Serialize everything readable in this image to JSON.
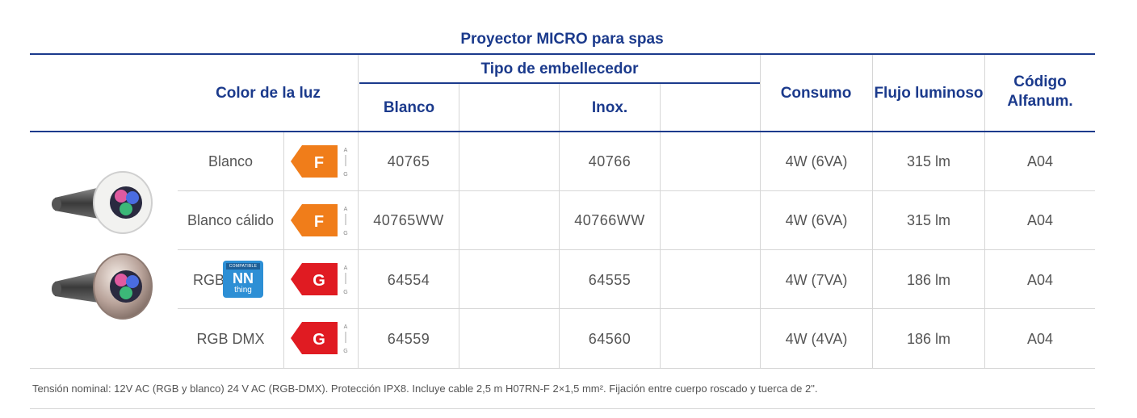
{
  "title": "Proyector MICRO para spas",
  "headers": {
    "color": "Color de la luz",
    "tipo": "Tipo de embellecedor",
    "blanco": "Blanco",
    "inox": "Inox.",
    "consumo": "Consumo",
    "flujo": "Flujo luminoso",
    "codigo_1": "Código",
    "codigo_2": "Alfanum."
  },
  "rows": [
    {
      "color": "Blanco",
      "energy_class": "F",
      "blanco": "40765",
      "inox": "40766",
      "consumo": "4W (6VA)",
      "flujo": "315 lm",
      "codigo": "A04"
    },
    {
      "color": "Blanco cálido",
      "energy_class": "F",
      "blanco": "40765WW",
      "inox": "40766WW",
      "consumo": "4W (6VA)",
      "flujo": "315 lm",
      "codigo": "A04"
    },
    {
      "color": "RGB",
      "energy_class": "G",
      "blanco": "64554",
      "inox": "64555",
      "consumo": "4W (7VA)",
      "flujo": "186 lm",
      "codigo": "A04"
    },
    {
      "color": "RGB DMX",
      "energy_class": "G",
      "blanco": "64559",
      "inox": "64560",
      "consumo": "4W (4VA)",
      "flujo": "186 lm",
      "codigo": "A04"
    }
  ],
  "energy_scale": {
    "top": "A",
    "bottom": "G"
  },
  "nn_badge": {
    "top": "COMPATIBLE",
    "brand": "NN",
    "sub": "thing"
  },
  "colors": {
    "accent": "#1b3a8c",
    "class_f": "#f07d1a",
    "class_g": "#e01b22",
    "nn": "#2d8fd5"
  },
  "footnote": "Tensión nominal: 12V AC (RGB y blanco) 24 V AC (RGB-DMX). Protección IPX8. Incluye cable 2,5 m H07RN-F 2×1,5 mm². Fijación entre cuerpo roscado y tuerca de 2\"."
}
